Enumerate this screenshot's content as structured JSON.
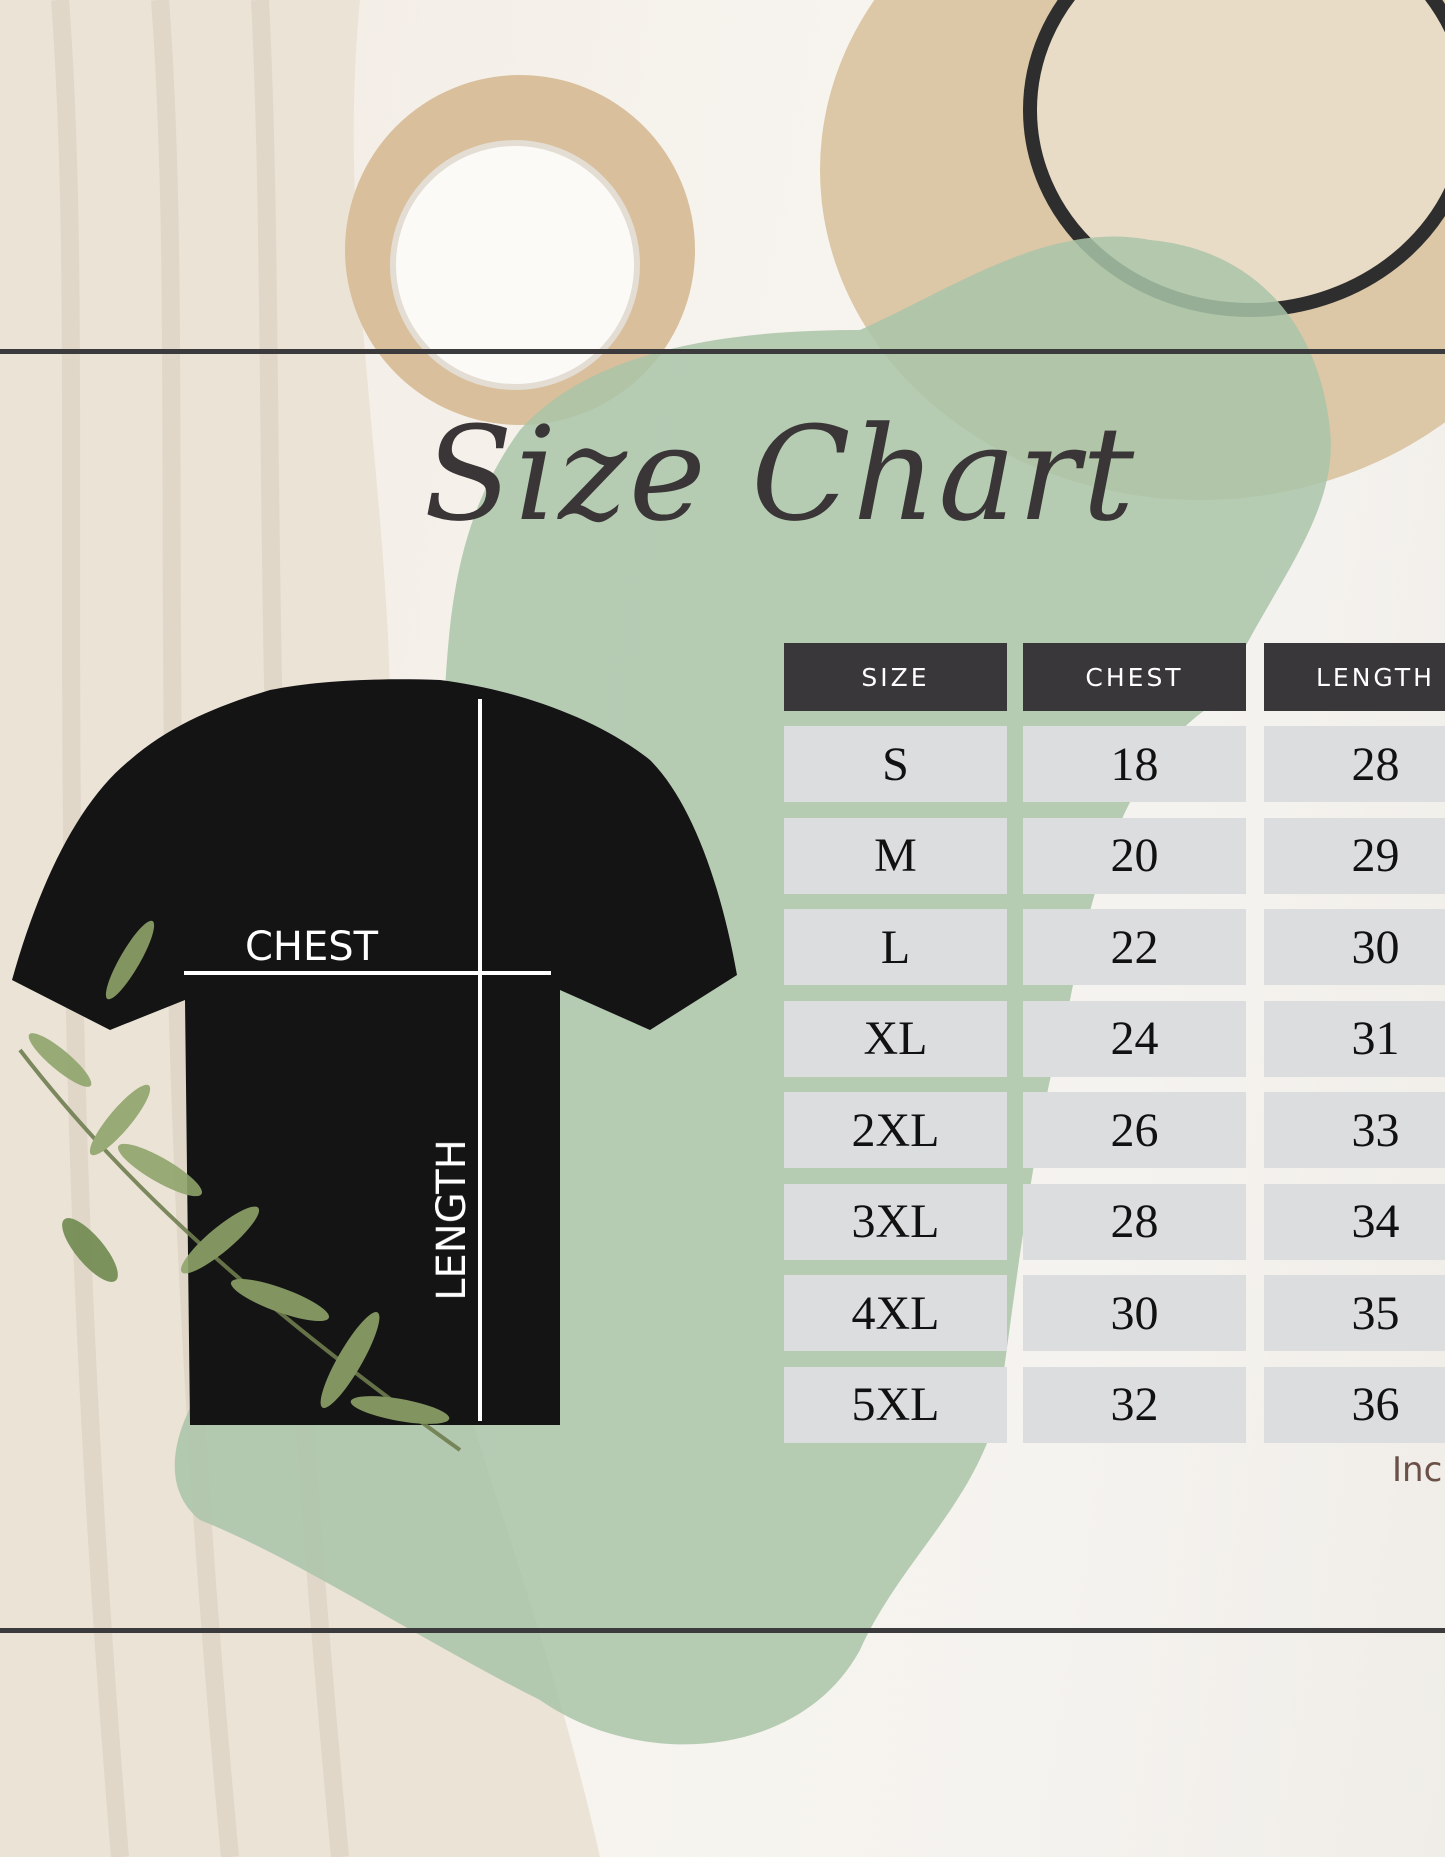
{
  "title": "Size Chart",
  "table": {
    "headers": [
      "SIZE",
      "CHEST",
      "LENGTH"
    ],
    "rows": [
      [
        "S",
        "18",
        "28"
      ],
      [
        "M",
        "20",
        "29"
      ],
      [
        "L",
        "22",
        "30"
      ],
      [
        "XL",
        "24",
        "31"
      ],
      [
        "2XL",
        "26",
        "33"
      ],
      [
        "3XL",
        "28",
        "34"
      ],
      [
        "4XL",
        "30",
        "35"
      ],
      [
        "5XL",
        "32",
        "36"
      ]
    ],
    "unit": "Inch"
  },
  "diagram": {
    "chest_label": "CHEST",
    "length_label": "LENGTH"
  },
  "colors": {
    "header_bg": "#39373a",
    "cell_bg": "#dcdddf",
    "blob_green": "#a9c4a8",
    "shirt": "#141414"
  }
}
